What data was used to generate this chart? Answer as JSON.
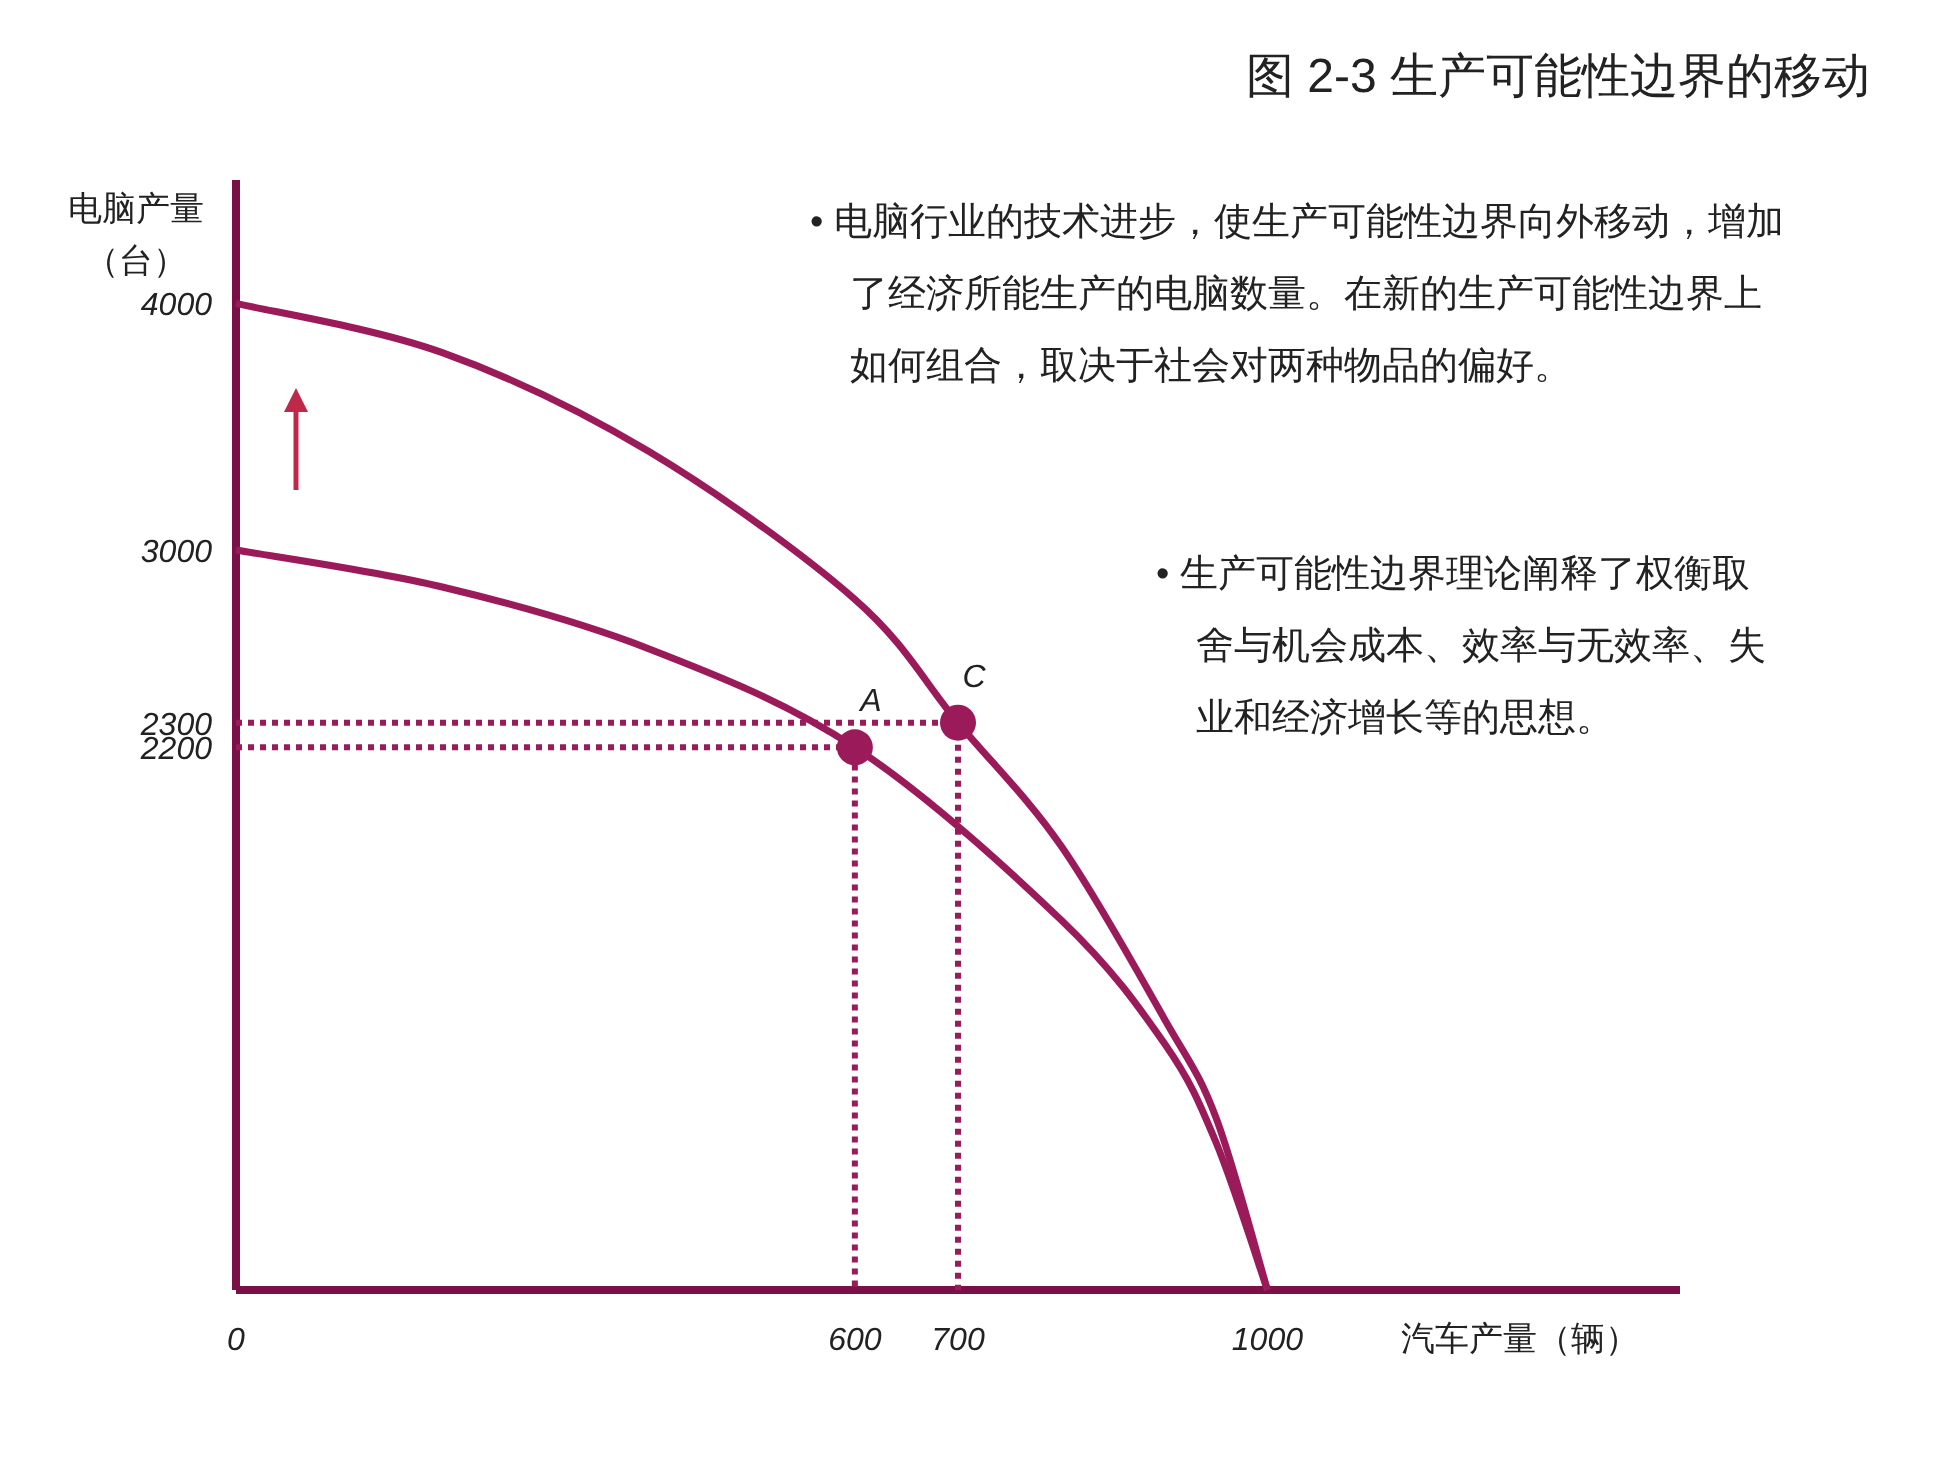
{
  "chart_data": {
    "type": "line",
    "title": "图 2-3 生产可能性边界的移动",
    "xlabel": "汽车产量（辆）",
    "ylabel": "电脑产量（台）",
    "annotations": [
      "• 电脑行业的技术进步，使生产可能性边界向外移动，增加了经济所能生产的电脑数量。在新的生产可能性边界上如何组合，取决于社会对两种物品的偏好。",
      "• 生产可能性边界理论阐释了权衡取舍与机会成本、效率与无效率、失业和经济增长等的思想。",
      {
        "text": "A",
        "x": 600,
        "y": 2200
      },
      {
        "text": "C",
        "x": 700,
        "y": 2300
      }
    ],
    "xlim": [
      0,
      1400
    ],
    "ylim": [
      0,
      4500
    ],
    "xticks": [
      0,
      600,
      700,
      1000
    ],
    "yticks": [
      2200,
      2300,
      3000,
      4000
    ],
    "series": [
      {
        "color": "#9b1b5a",
        "x": [
          0,
          200,
          400,
          600,
          800,
          900,
          950,
          1000
        ],
        "values": [
          3000,
          2850,
          2600,
          2200,
          1500,
          1000,
          600,
          0
        ]
      },
      {
        "color": "#9b1b5a",
        "x": [
          0,
          200,
          400,
          600,
          700,
          800,
          900,
          950,
          1000
        ],
        "values": [
          4000,
          3800,
          3400,
          2800,
          2300,
          1800,
          1100,
          700,
          0
        ]
      },
      {
        "color": "#9b1b5a",
        "line_style": "dotted",
        "x": [
          0,
          600,
          600
        ],
        "values": [
          2200,
          2200,
          0
        ]
      },
      {
        "color": "#9b1b5a",
        "line_style": "dotted",
        "x": [
          0,
          700,
          700
        ],
        "values": [
          2300,
          2300,
          0
        ]
      },
      {
        "type": "scatter",
        "color": "#9b1b5a",
        "marker": "circle",
        "x": [
          600,
          700
        ],
        "values": [
          2200,
          2300
        ]
      }
    ]
  }
}
